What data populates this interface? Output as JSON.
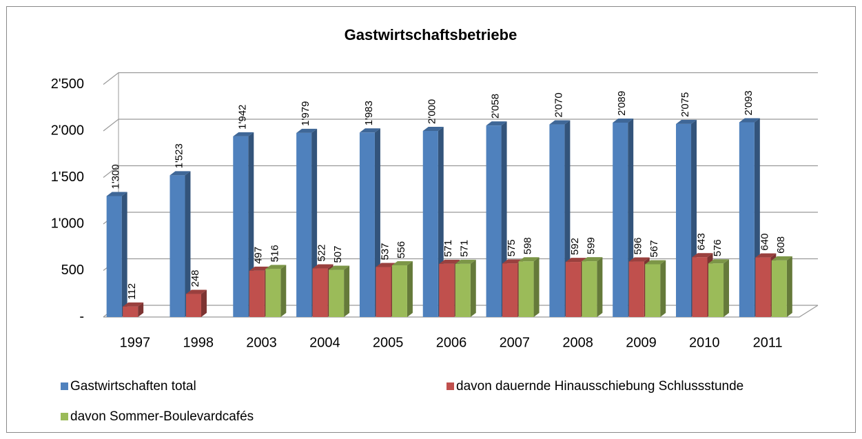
{
  "chart_data": {
    "type": "bar3d",
    "title": "Gastwirtschaftsbetriebe",
    "categories": [
      "1997",
      "1998",
      "2003",
      "2004",
      "2005",
      "2006",
      "2007",
      "2008",
      "2009",
      "2010",
      "2011"
    ],
    "series": [
      {
        "name": "Gastwirtschaften total",
        "color": "#4f81bd",
        "values": [
          1300,
          1523,
          1942,
          1979,
          1983,
          2000,
          2058,
          2070,
          2089,
          2075,
          2093
        ],
        "value_labels": [
          "1'300",
          "1'523",
          "1'942",
          "1'979",
          "1'983",
          "2'000",
          "2'058",
          "2'070",
          "2'089",
          "2'075",
          "2'093"
        ]
      },
      {
        "name": "davon dauernde Hinausschiebung Schlussstunde",
        "color": "#c0504d",
        "values": [
          112,
          248,
          497,
          522,
          537,
          571,
          575,
          592,
          596,
          643,
          640
        ]
      },
      {
        "name": "davon Sommer-Boulevardcafés",
        "color": "#9bbb59",
        "values": [
          null,
          null,
          516,
          507,
          556,
          571,
          598,
          599,
          567,
          576,
          608
        ]
      }
    ],
    "ylim": [
      0,
      2500
    ],
    "yticks": [
      {
        "value": 0,
        "label": "-"
      },
      500,
      {
        "value": 1000,
        "label": "1'000"
      },
      {
        "value": 1500,
        "label": "1'500"
      },
      {
        "value": 2000,
        "label": "2'000"
      },
      {
        "value": 2500,
        "label": "2'500"
      }
    ],
    "grid": true
  }
}
